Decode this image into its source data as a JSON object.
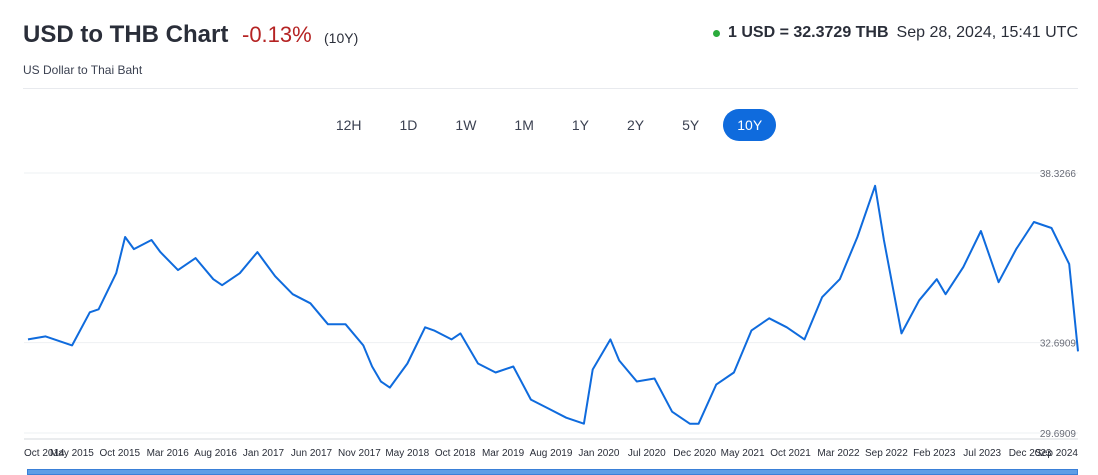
{
  "header": {
    "title": "USD to THB Chart",
    "change": "-0.13%",
    "period": "(10Y)",
    "subtitle": "US Dollar to Thai Baht",
    "rate": "1 USD = 32.3729 THB",
    "timestamp": "Sep 28, 2024, 15:41 UTC",
    "colors": {
      "live_dot": "#2bab3c",
      "change": "#b52323",
      "accent": "#0f6bdd"
    }
  },
  "ranges": {
    "items": [
      "12H",
      "1D",
      "1W",
      "1M",
      "1Y",
      "2Y",
      "5Y",
      "10Y"
    ],
    "selected": "10Y"
  },
  "chart_data": {
    "type": "line",
    "title": "",
    "xlabel": "",
    "ylabel": "",
    "y_tick_labels": [
      "38.3266",
      "32.6909",
      "29.6909"
    ],
    "x_tick_labels": [
      "Oct 2014",
      "May 2015",
      "Oct 2015",
      "Mar 2016",
      "Aug 2016",
      "Jan 2017",
      "Jun 2017",
      "Nov 2017",
      "May 2018",
      "Oct 2018",
      "Mar 2019",
      "Aug 2019",
      "Jan 2020",
      "Jul 2020",
      "Dec 2020",
      "May 2021",
      "Oct 2021",
      "Mar 2022",
      "Sep 2022",
      "Feb 2023",
      "Jul 2023",
      "Dec 2023",
      "Sep 2024"
    ],
    "ylim": [
      29.6909,
      38.3266
    ],
    "grid": true,
    "line_color": "#0f6bdd",
    "series": [
      {
        "x": [
          "2014-10",
          "2014-12",
          "2015-03",
          "2015-05",
          "2015-06",
          "2015-08",
          "2015-09",
          "2015-10",
          "2015-12",
          "2016-01",
          "2016-03",
          "2016-05",
          "2016-07",
          "2016-08",
          "2016-10",
          "2016-12",
          "2017-01",
          "2017-02",
          "2017-04",
          "2017-06",
          "2017-08",
          "2017-10",
          "2017-12",
          "2018-01",
          "2018-02",
          "2018-03",
          "2018-05",
          "2018-07",
          "2018-08",
          "2018-10",
          "2018-11",
          "2019-01",
          "2019-03",
          "2019-05",
          "2019-07",
          "2019-09",
          "2019-11",
          "2020-01",
          "2020-02",
          "2020-04",
          "2020-05",
          "2020-07",
          "2020-09",
          "2020-11",
          "2020-12",
          "2021-01",
          "2021-02",
          "2021-04",
          "2021-06",
          "2021-08",
          "2021-10",
          "2021-12",
          "2022-02",
          "2022-04",
          "2022-06",
          "2022-08",
          "2022-10",
          "2022-11",
          "2023-01",
          "2023-03",
          "2023-05",
          "2023-06",
          "2023-08",
          "2023-10",
          "2023-12",
          "2024-02",
          "2024-04",
          "2024-06",
          "2024-08",
          "2024-09"
        ],
        "values": [
          32.8,
          32.9,
          32.6,
          33.7,
          33.8,
          35.0,
          36.2,
          35.8,
          36.1,
          35.7,
          35.1,
          35.5,
          34.8,
          34.6,
          35.0,
          35.7,
          35.3,
          34.9,
          34.3,
          34.0,
          33.3,
          33.3,
          32.6,
          31.9,
          31.4,
          31.2,
          32.0,
          33.2,
          33.1,
          32.8,
          33.0,
          32.0,
          31.7,
          31.9,
          30.8,
          30.5,
          30.2,
          30.0,
          31.8,
          32.8,
          32.1,
          31.4,
          31.5,
          30.4,
          30.2,
          30.0,
          30.0,
          31.3,
          31.7,
          33.1,
          33.5,
          33.2,
          32.8,
          34.2,
          34.8,
          36.2,
          37.9,
          36.1,
          33.0,
          34.1,
          34.8,
          34.3,
          35.2,
          36.4,
          34.7,
          35.8,
          36.7,
          36.5,
          35.3,
          32.4
        ]
      }
    ]
  },
  "navigator": {
    "label": "range-navigator"
  }
}
